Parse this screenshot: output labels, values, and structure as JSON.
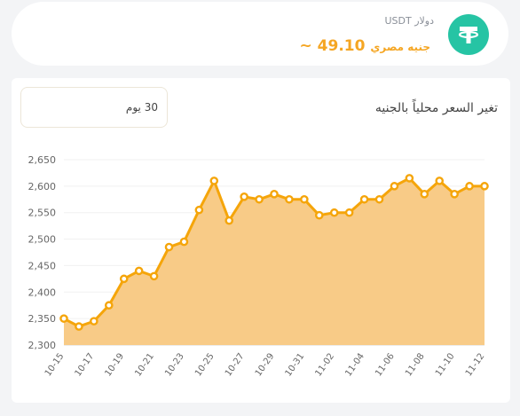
{
  "header": {
    "coin_name": "دولار USDT",
    "price_prefix": "~",
    "price_value": "49.10",
    "price_unit": "جنيه مصري",
    "icon": "tether-icon",
    "accent_color": "#f5a623",
    "icon_color": "#26c4a4"
  },
  "chart_panel": {
    "title": "تغير السعر محلياً بالجنيه",
    "period_label": "30 يوم"
  },
  "chart_data": {
    "type": "area",
    "x": [
      "10-15",
      "10-16",
      "10-17",
      "10-18",
      "10-19",
      "10-20",
      "10-21",
      "10-22",
      "10-23",
      "10-24",
      "10-25",
      "10-26",
      "10-27",
      "10-28",
      "10-29",
      "10-30",
      "10-31",
      "11-01",
      "11-02",
      "11-03",
      "11-04",
      "11-05",
      "11-06",
      "11-07",
      "11-08",
      "11-09",
      "11-10",
      "11-11",
      "11-12"
    ],
    "tick_labels": [
      "10-15",
      "10-17",
      "10-19",
      "10-21",
      "10-23",
      "10-25",
      "10-27",
      "10-29",
      "10-31",
      "11-02",
      "11-04",
      "11-06",
      "11-08",
      "11-10",
      "11-12"
    ],
    "values": [
      2350,
      2335,
      2345,
      2375,
      2425,
      2440,
      2430,
      2485,
      2495,
      2555,
      2610,
      2535,
      2580,
      2575,
      2585,
      2575,
      2575,
      2545,
      2550,
      2550,
      2575,
      2575,
      2600,
      2615,
      2585,
      2610,
      2585,
      2600,
      2600
    ],
    "ylim": [
      2300,
      2650
    ],
    "yticks": [
      2300,
      2350,
      2400,
      2450,
      2500,
      2550,
      2600,
      2650
    ],
    "ytick_labels": [
      "2,300",
      "2,350",
      "2,400",
      "2,450",
      "2,500",
      "2,550",
      "2,600",
      "2,650"
    ],
    "line_color": "#f5a50a",
    "fill_color": "#f8cb87",
    "grid": true
  }
}
